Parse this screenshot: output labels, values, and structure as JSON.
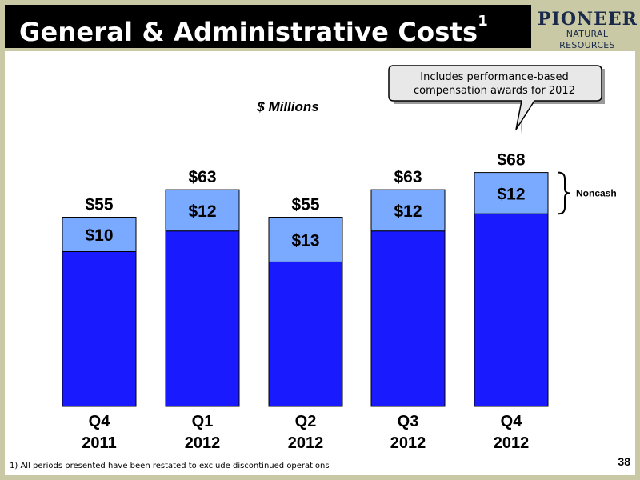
{
  "header": {
    "title": "General & Administrative Costs",
    "title_superscript": "1",
    "logo_line1": "PIONEER",
    "logo_line2": "NATURAL RESOURCES"
  },
  "footnote": "1) All periods presented have been restated to exclude discontinued operations",
  "page_number": "38",
  "chart_data": {
    "type": "bar",
    "stacked": true,
    "title": "$ Millions",
    "categories": [
      {
        "line1": "Q4",
        "line2": "2011"
      },
      {
        "line1": "Q1",
        "line2": "2012"
      },
      {
        "line1": "Q2",
        "line2": "2012"
      },
      {
        "line1": "Q3",
        "line2": "2012"
      },
      {
        "line1": "Q4",
        "line2": "2012"
      }
    ],
    "series": [
      {
        "name": "",
        "values": [
          45,
          51,
          42,
          51,
          56
        ],
        "color": "#1a1aff"
      },
      {
        "name": "Noncash",
        "values": [
          10,
          12,
          13,
          12,
          12
        ],
        "color": "#7aaaff"
      }
    ],
    "segment_labels": [
      "$10",
      "$12",
      "$13",
      "$12",
      "$12"
    ],
    "total_labels": [
      "$55",
      "$63",
      "$55",
      "$63",
      "$68"
    ],
    "totals": [
      55,
      63,
      55,
      63,
      68
    ],
    "ylim": [
      0,
      70
    ],
    "grid": false,
    "legend": "bracket-right",
    "bracket_label": "Noncash",
    "callout": "Includes performance-based compensation awards for 2012",
    "callout_lines": [
      "Includes performance-based",
      "compensation awards for 2012"
    ]
  }
}
